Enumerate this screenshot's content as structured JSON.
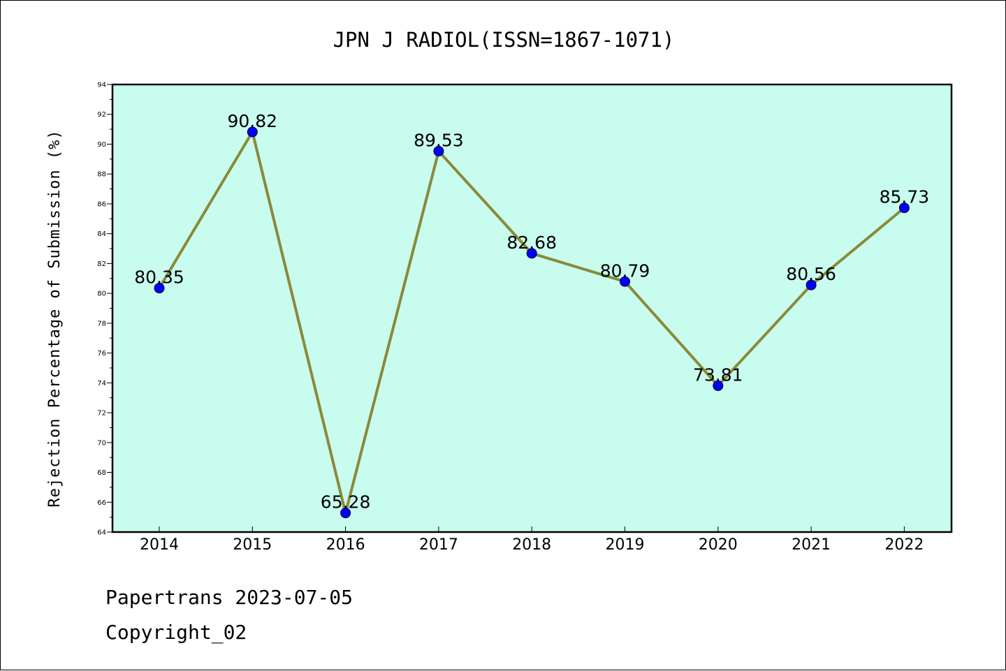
{
  "chart_data": {
    "type": "line",
    "title": "JPN J RADIOL(ISSN=1867-1071)",
    "xlabel": "",
    "ylabel": "Rejection Percentage of Submission (%)",
    "categories": [
      "2014",
      "2015",
      "2016",
      "2017",
      "2018",
      "2019",
      "2020",
      "2021",
      "2022"
    ],
    "series": [
      {
        "values": [
          80.35,
          90.82,
          65.28,
          89.53,
          82.68,
          80.79,
          73.81,
          80.56,
          85.73
        ]
      }
    ],
    "data_labels": [
      "80.35",
      "90.82",
      "65.28",
      "89.53",
      "82.68",
      "80.79",
      "73.81",
      "80.56",
      "85.73"
    ],
    "ylim": [
      64,
      94
    ],
    "yticks": [
      64,
      66,
      68,
      70,
      72,
      74,
      76,
      78,
      80,
      82,
      84,
      86,
      88,
      90,
      92,
      94
    ],
    "grid": false,
    "colors": {
      "plot_background": "#c8fcee",
      "line": "#8a8a3a",
      "marker": "#0000ff"
    }
  },
  "footer": {
    "line1": "Papertrans 2023-07-05",
    "line2": "Copyright_02"
  }
}
